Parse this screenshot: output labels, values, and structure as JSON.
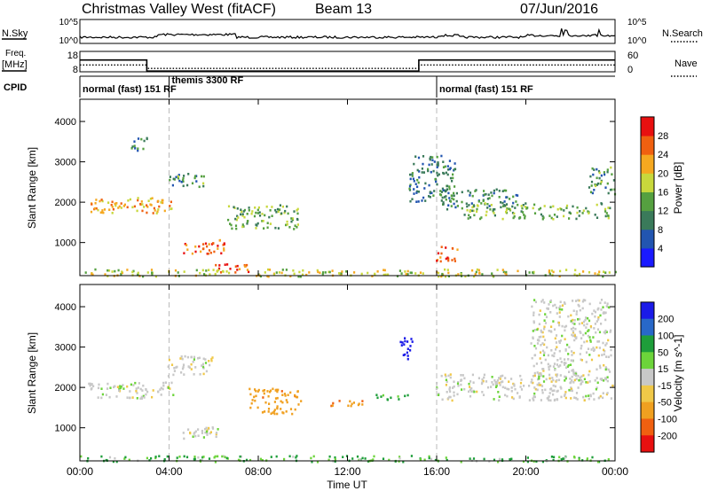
{
  "header": {
    "station": "Christmas Valley West (fitACF)",
    "beam": "Beam 13",
    "date": "07/Jun/2016"
  },
  "strip": {
    "nsky_label": "N.Sky",
    "nsearch_label": "N.Search",
    "freq_label_top": "Freq.",
    "freq_label_bottom": "[MHz]",
    "nave_label": "Nave",
    "cpid_label": "CPID",
    "noise_left_ticks": [
      "10^5",
      "10^0"
    ],
    "noise_right_ticks": [
      "10^5",
      "10^0"
    ],
    "freq_left_ticks": [
      "18",
      "8"
    ],
    "freq_right_ticks": [
      "60",
      "0"
    ],
    "cpid_segments": [
      {
        "label": "normal (fast) 151 RF",
        "start_h": 0,
        "end_h": 4
      },
      {
        "label": "themis 3300 RF",
        "start_h": 4,
        "end_h": 16
      },
      {
        "label": "normal (fast) 151 RF",
        "start_h": 16,
        "end_h": 24
      }
    ],
    "freq_series": [
      [
        0,
        14.2
      ],
      [
        3.0,
        14.2
      ],
      [
        3.0,
        8.8
      ],
      [
        15.2,
        8.8
      ],
      [
        15.2,
        14.2
      ],
      [
        24,
        14.2
      ]
    ],
    "nave_series": [
      [
        0,
        20
      ],
      [
        3.0,
        20
      ],
      [
        3.0,
        10
      ],
      [
        15.2,
        10
      ],
      [
        15.2,
        20
      ],
      [
        24,
        20
      ]
    ]
  },
  "chart_data": [
    {
      "type": "heatmap",
      "name": "power",
      "ylabel": "Slant Range [km]",
      "yticks": [
        "1000",
        "2000",
        "3000",
        "4000"
      ],
      "ylim": [
        180,
        4550
      ],
      "xlim": [
        0,
        24
      ],
      "colorbar_label": "Power [dB]",
      "colorbar_ticks": [
        "4",
        "8",
        "12",
        "16",
        "20",
        "24",
        "28"
      ],
      "colorbar_range": [
        0,
        30
      ],
      "colors": [
        "#1a1aff",
        "#2255b0",
        "#3a7a5a",
        "#55a040",
        "#c8d83c",
        "#f5a820",
        "#f06010",
        "#e81010"
      ],
      "features": [
        {
          "t0": 0.3,
          "t1": 4.2,
          "r0": 1750,
          "r1": 2150,
          "level": 22
        },
        {
          "t0": 3.9,
          "t1": 5.6,
          "r0": 2400,
          "r1": 2800,
          "level": 12
        },
        {
          "t0": 4.6,
          "t1": 6.6,
          "r0": 750,
          "r1": 1100,
          "level": 26
        },
        {
          "t0": 5.8,
          "t1": 7.6,
          "r0": 280,
          "r1": 500,
          "level": 28
        },
        {
          "t0": 6.6,
          "t1": 9.8,
          "r0": 1350,
          "r1": 1950,
          "level": 14
        },
        {
          "t0": 2.2,
          "t1": 3.0,
          "r0": 3300,
          "r1": 3650,
          "level": 10
        },
        {
          "t0": 14.7,
          "t1": 16.8,
          "r0": 1950,
          "r1": 3200,
          "level": 9
        },
        {
          "t0": 16.1,
          "t1": 19.6,
          "r0": 1850,
          "r1": 2350,
          "level": 11
        },
        {
          "t0": 17.2,
          "t1": 23.8,
          "r0": 1600,
          "r1": 2000,
          "level": 14
        },
        {
          "t0": 15.9,
          "t1": 16.9,
          "r0": 550,
          "r1": 950,
          "level": 26
        },
        {
          "t0": 22.8,
          "t1": 24,
          "r0": 2200,
          "r1": 2900,
          "level": 12
        },
        {
          "t0": 0,
          "t1": 24,
          "r0": 180,
          "r1": 360,
          "level": 18
        }
      ]
    },
    {
      "type": "heatmap",
      "name": "velocity",
      "ylabel": "Slant Range [km]",
      "yticks": [
        "1000",
        "2000",
        "3000",
        "4000"
      ],
      "ylim": [
        180,
        4550
      ],
      "xlim": [
        0,
        24
      ],
      "xticks": [
        "00:00",
        "04:00",
        "08:00",
        "12:00",
        "16:00",
        "20:00",
        "00:00"
      ],
      "xlabel": "Time UT",
      "colorbar_label": "Velocity [m s^-1]",
      "colorbar_ticks": [
        "200",
        "100",
        "50",
        "15",
        "-15",
        "-50",
        "-100",
        "-200"
      ],
      "colorbar_range": [
        -250,
        250
      ],
      "colors": [
        "#1a1ae8",
        "#2868c8",
        "#1e9e3a",
        "#6cd43a",
        "#c8c8c8",
        "#f0c848",
        "#f0a020",
        "#f06010",
        "#e81010"
      ],
      "features": [
        {
          "t0": 0.3,
          "t1": 4.2,
          "r0": 1750,
          "r1": 2150,
          "vel": 0
        },
        {
          "t0": 3.9,
          "t1": 6.0,
          "r0": 2300,
          "r1": 2800,
          "vel": 0
        },
        {
          "t0": 4.6,
          "t1": 6.6,
          "r0": 750,
          "r1": 1100,
          "vel": 0
        },
        {
          "t0": 7.5,
          "t1": 9.9,
          "r0": 1350,
          "r1": 2000,
          "vel": -60
        },
        {
          "t0": 11.2,
          "t1": 12.7,
          "r0": 1550,
          "r1": 1700,
          "vel": -80
        },
        {
          "t0": 13.1,
          "t1": 14.7,
          "r0": 1700,
          "r1": 1850,
          "vel": 40
        },
        {
          "t0": 14.3,
          "t1": 14.9,
          "r0": 2700,
          "r1": 3250,
          "vel": 220
        },
        {
          "t0": 15.9,
          "t1": 23.9,
          "r0": 1700,
          "r1": 2350,
          "vel": 0
        },
        {
          "t0": 20.2,
          "t1": 23.8,
          "r0": 2200,
          "r1": 4200,
          "vel": 0
        },
        {
          "t0": 0,
          "t1": 24,
          "r0": 180,
          "r1": 330,
          "vel": 30
        }
      ]
    }
  ]
}
